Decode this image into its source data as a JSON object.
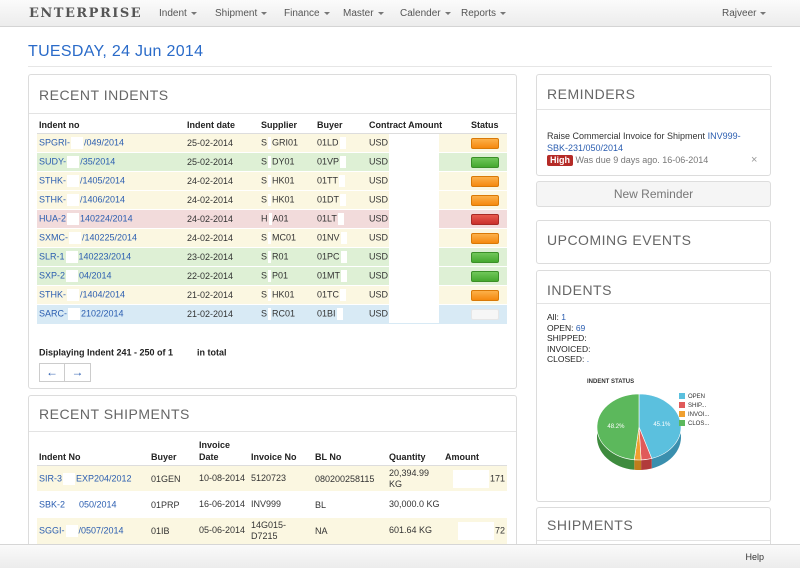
{
  "navbar": {
    "brand": "ENTERPRISE",
    "menus": [
      "Indent",
      "Shipment",
      "Finance",
      "Master",
      "Calender",
      "Reports"
    ],
    "user": "Rajveer"
  },
  "page": {
    "date": "TUESDAY, 24 Jun 2014"
  },
  "recent_indents": {
    "title": "RECENT INDENTS",
    "headers": [
      "Indent no",
      "Indent date",
      "Supplier",
      "Buyer",
      "Contract Amount",
      "Status"
    ],
    "rows": [
      {
        "no_a": "SPGRI-",
        "no_b": "/049/2014",
        "date": "25-02-2014",
        "sup_a": "S",
        "sup_b": "GRI01",
        "buyer": "01LD",
        "cur": "USD",
        "status": "orange",
        "tone": "y"
      },
      {
        "no_a": "SUDY-",
        "no_b": "/35/2014",
        "date": "25-02-2014",
        "sup_a": "S",
        "sup_b": "DY01",
        "buyer": "01VP",
        "cur": "USD",
        "status": "green",
        "tone": "g"
      },
      {
        "no_a": "STHK-",
        "no_b": "/1405/2014",
        "date": "24-02-2014",
        "sup_a": "S",
        "sup_b": "HK01",
        "buyer": "01TT",
        "cur": "USD",
        "status": "orange",
        "tone": "y"
      },
      {
        "no_a": "STHK-",
        "no_b": "/1406/2014",
        "date": "24-02-2014",
        "sup_a": "S",
        "sup_b": "HK01",
        "buyer": "01DT",
        "cur": "USD",
        "status": "orange",
        "tone": "y"
      },
      {
        "no_a": "HUA-2",
        "no_b": "140224/2014",
        "date": "24-02-2014",
        "sup_a": "H",
        "sup_b": "A01",
        "buyer": "01LT",
        "cur": "USD",
        "status": "red",
        "tone": "r"
      },
      {
        "no_a": "SXMC-",
        "no_b": "/140225/2014",
        "date": "24-02-2014",
        "sup_a": "S",
        "sup_b": "MC01",
        "buyer": "01NV",
        "cur": "USD",
        "status": "orange",
        "tone": "y"
      },
      {
        "no_a": "SLR-1",
        "no_b": "140223/2014",
        "date": "23-02-2014",
        "sup_a": "S",
        "sup_b": "R01",
        "buyer": "01PC",
        "cur": "USD",
        "status": "green",
        "tone": "g"
      },
      {
        "no_a": "SXP-2",
        "no_b": "04/2014",
        "date": "22-02-2014",
        "sup_a": "S",
        "sup_b": "P01",
        "buyer": "01MT",
        "cur": "USD",
        "status": "green",
        "tone": "g"
      },
      {
        "no_a": "STHK-",
        "no_b": "/1404/2014",
        "date": "21-02-2014",
        "sup_a": "S",
        "sup_b": "HK01",
        "buyer": "01TC",
        "cur": "USD",
        "status": "orange",
        "tone": "y"
      },
      {
        "no_a": "SARC-",
        "no_b": "2102/2014",
        "date": "21-02-2014",
        "sup_a": "S",
        "sup_b": "RC01",
        "buyer": "01BI",
        "cur": "USD",
        "status": "blank",
        "tone": "b"
      }
    ],
    "summary_a": "Displaying Indent 241 - 250 of 1",
    "summary_b": "in total",
    "prev": "←",
    "next": "→"
  },
  "recent_shipments": {
    "title": "RECENT SHIPMENTS",
    "headers": [
      "Indent No",
      "Buyer",
      "Invoice Date",
      "Invoice No",
      "BL No",
      "Quantity",
      "Amount"
    ],
    "rows": [
      {
        "no_a": "SIR-3",
        "no_b": "EXP204/2012",
        "buyer": "01GEN",
        "inv_date": "10-08-2014",
        "inv_no": "5120723",
        "bl": "080200258115",
        "qty": "20,394.99 KG",
        "amount": "171",
        "tone": "y"
      },
      {
        "no_a": "SBK-2",
        "no_b": "050/2014",
        "buyer": "01PRP",
        "inv_date": "16-06-2014",
        "inv_no": "INV999",
        "bl": "BL",
        "qty": "30,000.0 KG",
        "amount": "",
        "tone": "w"
      },
      {
        "no_a": "SGGI-",
        "no_b": "/0507/2014",
        "buyer": "01IB",
        "inv_date": "05-06-2014",
        "inv_no": "14G015-D7215",
        "bl": "NA",
        "qty": "601.64 KG",
        "amount": "72",
        "tone": "y"
      }
    ]
  },
  "reminders": {
    "title": "REMINDERS",
    "text": "Raise Commercial Invoice for Shipment",
    "link_a": "INV999-",
    "link_b": "SBK-231/050/2014",
    "badge": "High",
    "due": "Was due 9 days ago. 16-06-2014",
    "close": "×",
    "new_button": "New Reminder"
  },
  "upcoming": {
    "title": "UPCOMING EVENTS"
  },
  "indents_stats": {
    "title": "INDENTS",
    "all_label": "All:",
    "all_value": "1",
    "open_label": "OPEN:",
    "open_value": "69",
    "shipped_label": "SHIPPED:",
    "invoiced_label": "INVOICED:",
    "closed_label": "CLOSED:",
    "closed_value": "."
  },
  "shipments_panel": {
    "title": "SHIPMENTS"
  },
  "footer": {
    "help": "Help"
  },
  "chart_data": {
    "type": "pie",
    "title": "INDENT STATUS",
    "legend": [
      "OPEN",
      "SHIP...",
      "INVOI...",
      "CLOS..."
    ],
    "values": [
      45.1,
      4.1,
      2.6,
      48.2
    ],
    "labels": [
      "45.1%",
      "",
      "",
      "48.2%"
    ],
    "colors": [
      "#5bc0de",
      "#e05a5a",
      "#f0a030",
      "#5cb85c"
    ],
    "side_colors": [
      "#3a8fae",
      "#b13b3b",
      "#c07d1c",
      "#3e8b3e"
    ],
    "legend_position": "right"
  }
}
